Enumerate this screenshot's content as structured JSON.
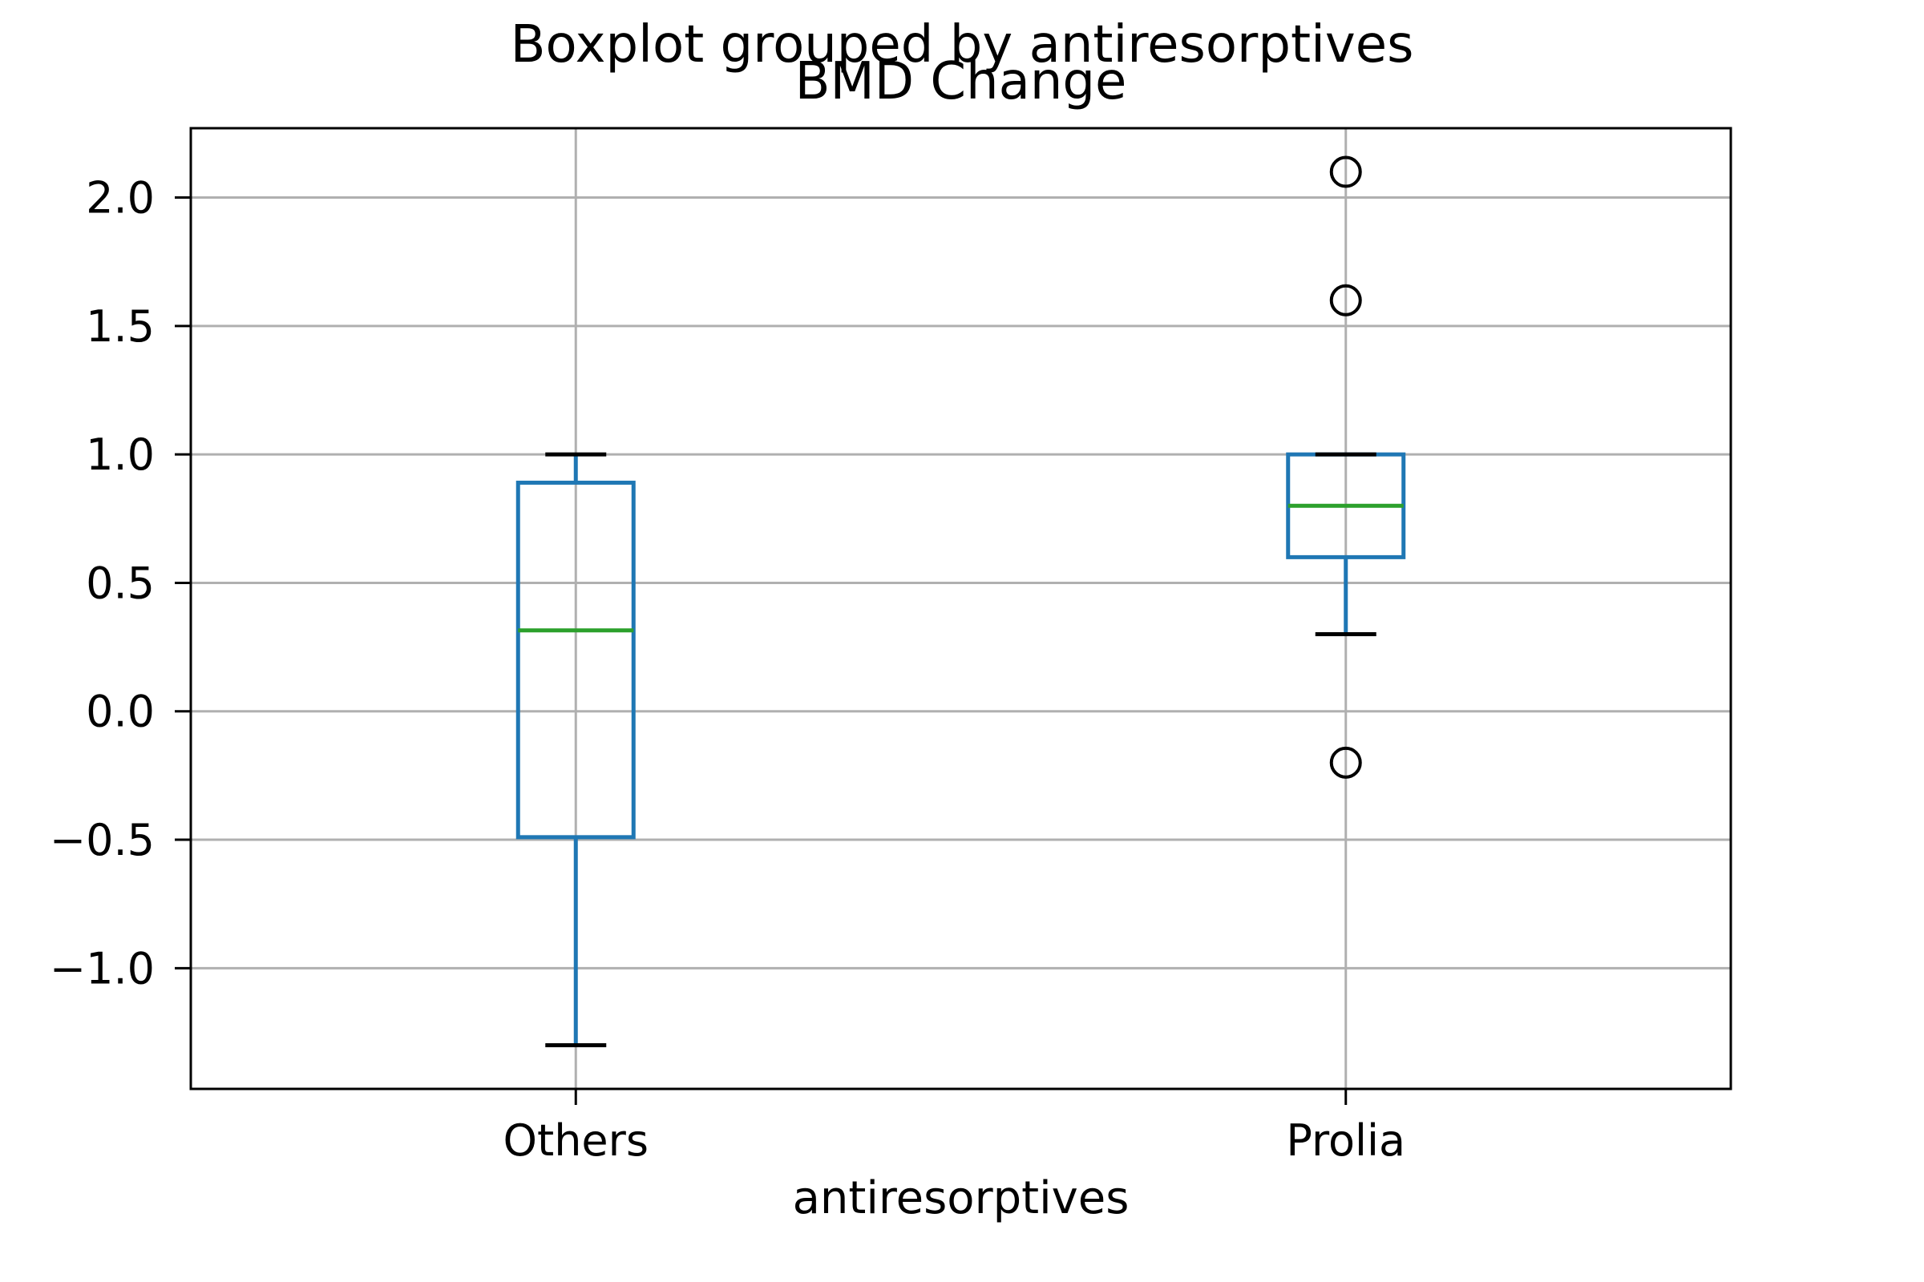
{
  "chart_data": {
    "type": "boxplot",
    "suptitle": "Boxplot grouped by antiresorptives",
    "title": "BMD Change",
    "xlabel": "antiresorptives",
    "ylabel": "",
    "categories": [
      "Others",
      "Prolia"
    ],
    "ylim": [
      -1.47,
      2.27
    ],
    "ytick_values": [
      2.0,
      1.5,
      1.0,
      0.5,
      0.0,
      -0.5,
      -1.0
    ],
    "ytick_labels": [
      "2.0",
      "1.5",
      "1.0",
      "0.5",
      "0.0",
      "−0.5",
      "−1.0"
    ],
    "grid": true,
    "legend": "none",
    "series": [
      {
        "name": "Others",
        "whisker_low": -1.3,
        "q1": -0.49,
        "median": 0.315,
        "q3": 0.89,
        "whisker_high": 1.0,
        "outliers": []
      },
      {
        "name": "Prolia",
        "whisker_low": 0.3,
        "q1": 0.6,
        "median": 0.8,
        "q3": 1.0,
        "whisker_high": 1.0,
        "outliers": [
          2.1,
          1.6,
          -0.2
        ]
      }
    ],
    "colors": {
      "box": "#1f77b4",
      "whisker": "#1f77b4",
      "median": "#2ca02c",
      "cap": "#000000",
      "outlier": "#000000",
      "grid": "#b0b0b0",
      "spine": "#000000",
      "text": "#000000",
      "background": "#ffffff"
    }
  }
}
